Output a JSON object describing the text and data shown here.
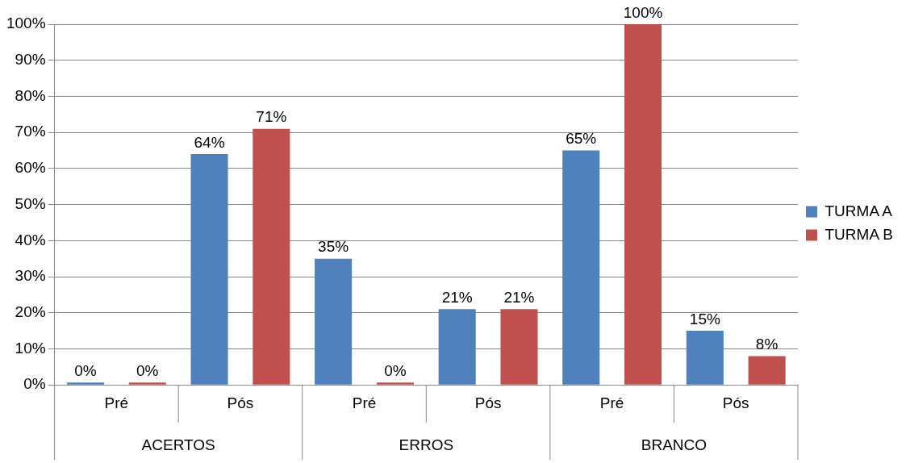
{
  "chart_data": {
    "type": "bar",
    "categories": [
      "Pré",
      "Pós",
      "Pré",
      "Pós",
      "Pré",
      "Pós"
    ],
    "annotations": [
      "ACERTOS",
      "ERROS",
      "BRANCO"
    ],
    "series": [
      {
        "name": "TURMA A",
        "color": "#4f81bd",
        "values": [
          0,
          64,
          35,
          21,
          65,
          15
        ],
        "value_labels": [
          "0%",
          "64%",
          "35%",
          "21%",
          "65%",
          "15%"
        ]
      },
      {
        "name": "TURMA B",
        "color": "#c0504d",
        "values": [
          0,
          71,
          0,
          21,
          100,
          8
        ],
        "value_labels": [
          "0%",
          "71%",
          "0%",
          "21%",
          "100%",
          "8%"
        ]
      }
    ],
    "ylim": [
      0,
      100
    ],
    "yticks": [
      {
        "value": 0,
        "label": "0%"
      },
      {
        "value": 10,
        "label": "10%"
      },
      {
        "value": 20,
        "label": "20%"
      },
      {
        "value": 30,
        "label": "30%"
      },
      {
        "value": 40,
        "label": "40%"
      },
      {
        "value": 50,
        "label": "50%"
      },
      {
        "value": 60,
        "label": "60%"
      },
      {
        "value": 70,
        "label": "70%"
      },
      {
        "value": 80,
        "label": "80%"
      },
      {
        "value": 90,
        "label": "90%"
      },
      {
        "value": 100,
        "label": "100%"
      }
    ],
    "grid": "y",
    "legend": "right"
  }
}
